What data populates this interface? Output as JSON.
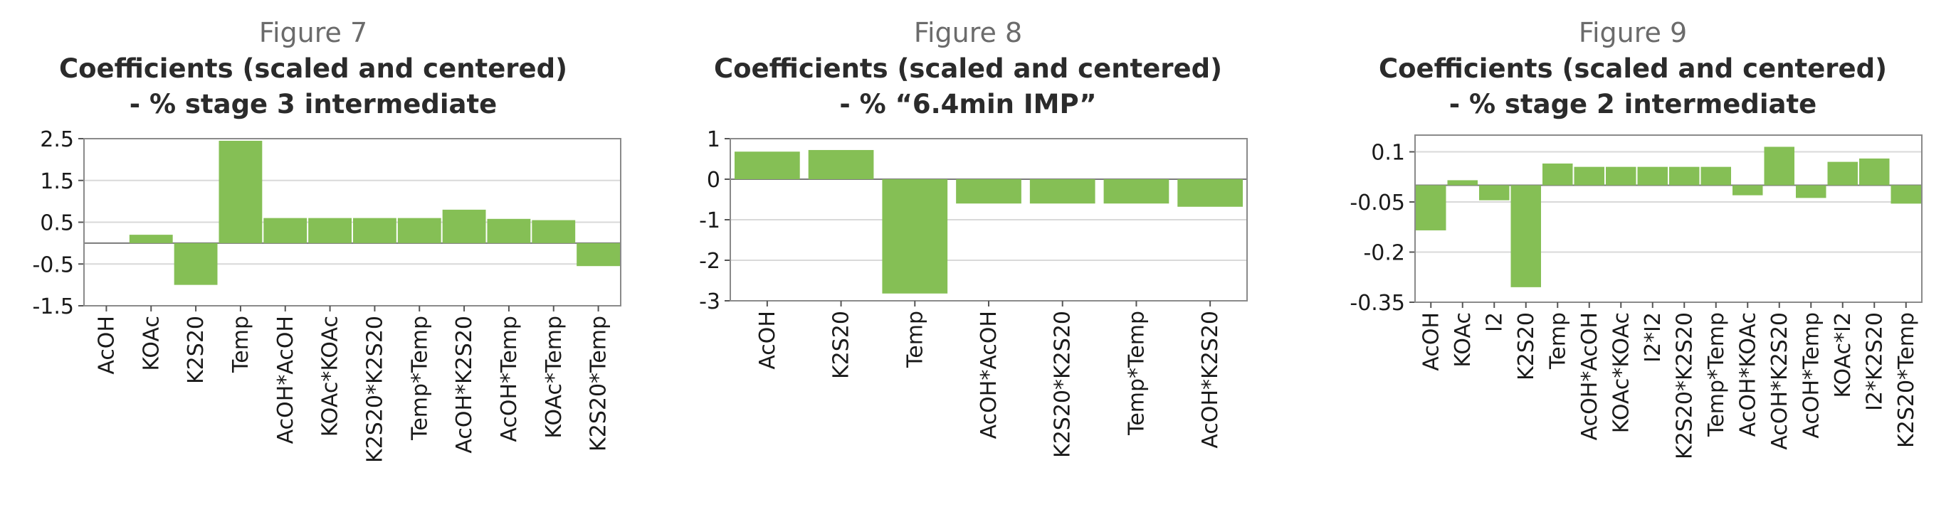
{
  "chart_data": [
    {
      "type": "bar",
      "figure_label": "Figure 7",
      "title_line1": "Coefficients (scaled and centered)",
      "title_line2": "- % stage 3 intermediate",
      "categories": [
        "AcOH",
        "KOAc",
        "K2S20",
        "Temp",
        "AcOH*AcOH",
        "KOAc*KOAc",
        "K2S20*K2S20",
        "Temp*Temp",
        "AcOH*K2S20",
        "AcOH*Temp",
        "KOAc*Temp",
        "K2S20*Temp"
      ],
      "values": [
        0.0,
        0.2,
        -1.0,
        2.45,
        0.6,
        0.6,
        0.6,
        0.6,
        0.8,
        0.58,
        0.55,
        -0.55
      ],
      "yticks": [
        "2.5",
        "1.5",
        "0.5",
        "-0.5",
        "-1.5"
      ],
      "ytick_values": [
        2.5,
        1.5,
        0.5,
        -0.5,
        -1.5
      ],
      "ylim": [
        -1.5,
        2.5
      ],
      "grid": true,
      "bar_color": "#85bf55"
    },
    {
      "type": "bar",
      "figure_label": "Figure 8",
      "title_line1": "Coefficients (scaled and centered)",
      "title_line2": "- % “6.4min IMP”",
      "categories": [
        "AcOH",
        "K2S20",
        "Temp",
        "AcOH*AcOH",
        "K2S20*K2S20",
        "Temp*Temp",
        "AcOH*K2S20"
      ],
      "values": [
        0.68,
        0.72,
        -2.82,
        -0.6,
        -0.6,
        -0.6,
        -0.68
      ],
      "yticks": [
        "1",
        "0",
        "-1",
        "-2",
        "-3"
      ],
      "ytick_values": [
        1,
        0,
        -1,
        -2,
        -3
      ],
      "ylim": [
        -3,
        1
      ],
      "grid": true,
      "bar_color": "#85bf55"
    },
    {
      "type": "bar",
      "figure_label": "Figure 9",
      "title_line1": "Coefficients (scaled and centered)",
      "title_line2": "- % stage 2 intermediate",
      "categories": [
        "AcOH",
        "KOAc",
        "I2",
        "K2S20",
        "Temp",
        "AcOH*AcOH",
        "KOAc*KOAc",
        "I2*I2",
        "K2S20*K2S20",
        "Temp*Temp",
        "AcOH*KOAc",
        "AcOH*K2S20",
        "AcOH*Temp",
        "KOAc*I2",
        "I2*K2S20",
        "K2S20*Temp"
      ],
      "values": [
        -0.135,
        0.015,
        -0.045,
        -0.305,
        0.065,
        0.055,
        0.055,
        0.055,
        0.055,
        0.055,
        -0.03,
        0.115,
        -0.038,
        0.07,
        0.08,
        -0.055
      ],
      "yticks": [
        "0.1",
        "-0.05",
        "-0.2",
        "-0.35"
      ],
      "ytick_values": [
        0.1,
        -0.05,
        -0.2,
        -0.35
      ],
      "ylim": [
        -0.35,
        0.15
      ],
      "baseline": 0,
      "grid": true,
      "bar_color": "#85bf55"
    }
  ]
}
